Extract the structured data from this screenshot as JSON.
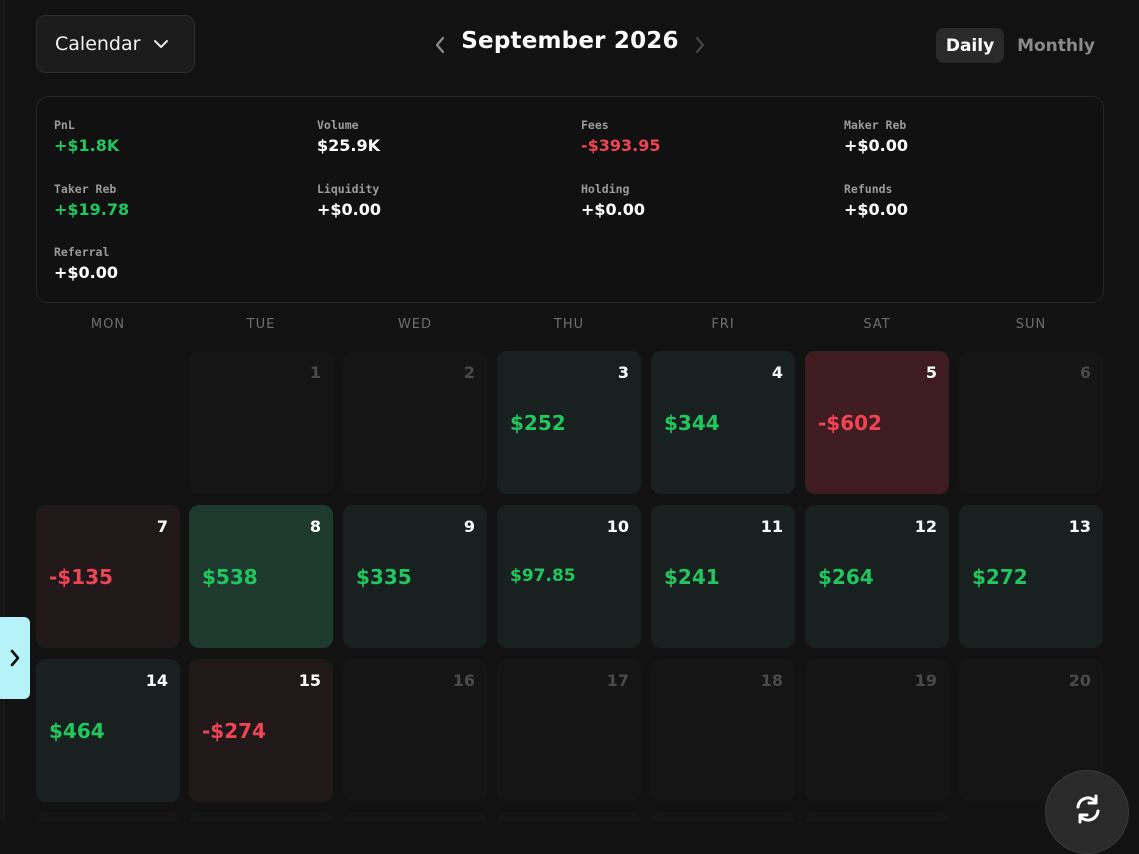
{
  "header": {
    "view_select_label": "Calendar",
    "month_title": "September 2026",
    "toggle_daily": "Daily",
    "toggle_monthly": "Monthly"
  },
  "stats": {
    "pnl": {
      "label": "PnL",
      "value": "+$1.8K"
    },
    "volume": {
      "label": "Volume",
      "value": "$25.9K"
    },
    "fees": {
      "label": "Fees",
      "value": "-$393.95"
    },
    "maker_reb": {
      "label": "Maker Reb",
      "value": "+$0.00"
    },
    "taker_reb": {
      "label": "Taker Reb",
      "value": "+$19.78"
    },
    "liquidity": {
      "label": "Liquidity",
      "value": "+$0.00"
    },
    "holding": {
      "label": "Holding",
      "value": "+$0.00"
    },
    "refunds": {
      "label": "Refunds",
      "value": "+$0.00"
    },
    "referral": {
      "label": "Referral",
      "value": "+$0.00"
    }
  },
  "weekdays": [
    "MON",
    "TUE",
    "WED",
    "THU",
    "FRI",
    "SAT",
    "SUN"
  ],
  "days": [
    {
      "day": "1",
      "amount": ""
    },
    {
      "day": "2",
      "amount": ""
    },
    {
      "day": "3",
      "amount": "$252"
    },
    {
      "day": "4",
      "amount": "$344"
    },
    {
      "day": "5",
      "amount": "-$602"
    },
    {
      "day": "6",
      "amount": ""
    },
    {
      "day": "7",
      "amount": "-$135"
    },
    {
      "day": "8",
      "amount": "$538"
    },
    {
      "day": "9",
      "amount": "$335"
    },
    {
      "day": "10",
      "amount": "$97.85"
    },
    {
      "day": "11",
      "amount": "$241"
    },
    {
      "day": "12",
      "amount": "$264"
    },
    {
      "day": "13",
      "amount": "$272"
    },
    {
      "day": "14",
      "amount": "$464"
    },
    {
      "day": "15",
      "amount": "-$274"
    },
    {
      "day": "16",
      "amount": ""
    },
    {
      "day": "17",
      "amount": ""
    },
    {
      "day": "18",
      "amount": ""
    },
    {
      "day": "19",
      "amount": ""
    },
    {
      "day": "20",
      "amount": ""
    }
  ],
  "colors": {
    "gain": "#22c55e",
    "loss": "#ef4455",
    "side_tab": "#b6f3f8"
  },
  "icons": {
    "view_select": "chevron-down-icon",
    "prev": "chevron-left-icon",
    "next": "chevron-right-icon",
    "side_tab": "chevron-right-icon",
    "refresh": "refresh-icon"
  }
}
